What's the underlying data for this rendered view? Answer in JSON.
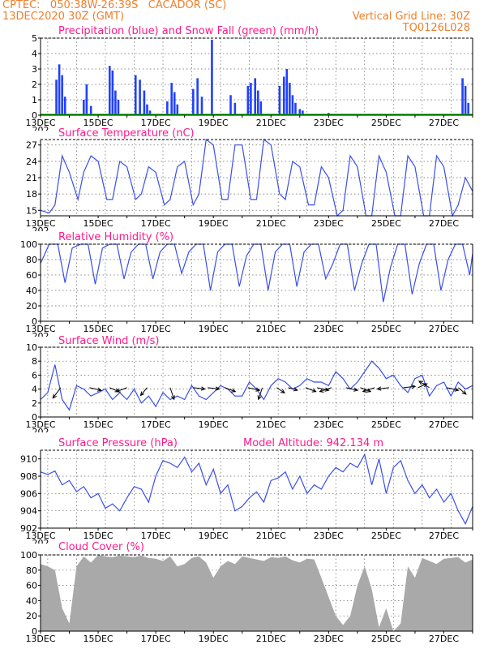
{
  "header": {
    "line1_left": "CPTEC:   050:38W-26:39S   CACADOR (SC)",
    "line2_left": "13DEC2020 30Z (GMT)",
    "line2_right": "Vertical Grid Line: 30Z",
    "line3_right": "TQ0126L028"
  },
  "colors": {
    "header": "#f07f2a",
    "title": "#ff1a8c",
    "precip": "#2040ff",
    "snow": "#00bb00",
    "line": "#3a4fe8",
    "cloud": "#a9a9a9"
  },
  "x_labels": [
    "13DEC",
    "15DEC",
    "17DEC",
    "19DEC",
    "21DEC",
    "23DEC",
    "25DEC",
    "27DEC"
  ],
  "x_cut_label": "202",
  "panels": {
    "precip": {
      "title": "Precipitation (blue) and Snow Fall (green) (mm/h)"
    },
    "temp": {
      "title": "Surface Temperature (nC)"
    },
    "rh": {
      "title": "Relative Humidity (%)"
    },
    "wind": {
      "title": "Surface Wind (m/s)"
    },
    "pressure": {
      "title": "Surface Pressure (hPa)",
      "altitude": "Model Altitude: 942.134 m"
    },
    "cloud": {
      "title": "Cloud Cover (%)"
    }
  },
  "chart_data": [
    {
      "type": "bar",
      "title": "Precipitation (blue) and Snow Fall (green) (mm/h)",
      "x_range_days": [
        13,
        28
      ],
      "ylim": [
        0,
        5
      ],
      "yticks": [
        0,
        1,
        2,
        3,
        4,
        5
      ],
      "series": [
        {
          "name": "blue",
          "x": [
            13.55,
            13.65,
            13.75,
            13.85,
            14.5,
            14.6,
            14.75,
            15.4,
            15.5,
            15.6,
            15.7,
            16.3,
            16.45,
            16.6,
            16.7,
            16.8,
            17.4,
            17.55,
            17.65,
            17.75,
            18.3,
            18.45,
            18.6,
            18.95,
            19.6,
            19.75,
            20.2,
            20.3,
            20.45,
            20.55,
            20.65,
            21.3,
            21.45,
            21.55,
            21.65,
            21.75,
            21.85,
            22.0,
            22.1,
            23.0,
            27.65,
            27.75,
            27.85
          ],
          "values": [
            2.3,
            3.3,
            2.6,
            1.2,
            1.0,
            2.0,
            0.6,
            3.2,
            2.9,
            1.6,
            1.0,
            2.6,
            2.3,
            1.6,
            0.7,
            0.3,
            0.9,
            2.1,
            1.5,
            0.7,
            1.7,
            2.4,
            1.2,
            4.9,
            1.3,
            0.8,
            1.9,
            2.1,
            2.4,
            1.6,
            0.9,
            1.9,
            2.5,
            3.0,
            2.1,
            1.3,
            0.8,
            0.4,
            0.3,
            0.15,
            2.4,
            1.9,
            0.8
          ]
        },
        {
          "name": "green",
          "x": [
            13.0,
            28.0
          ],
          "values": [
            0.05,
            0.05
          ]
        }
      ]
    },
    {
      "type": "line",
      "title": "Surface Temperature (nC)",
      "x_range_days": [
        13,
        28
      ],
      "ylim": [
        14,
        28
      ],
      "yticks": [
        15,
        18,
        21,
        24,
        27
      ],
      "x": [
        13.0,
        13.3,
        13.5,
        13.75,
        14.0,
        14.3,
        14.5,
        14.75,
        15.0,
        15.3,
        15.5,
        15.75,
        16.0,
        16.3,
        16.5,
        16.75,
        17.0,
        17.3,
        17.5,
        17.75,
        18.0,
        18.3,
        18.5,
        18.75,
        19.0,
        19.3,
        19.5,
        19.75,
        20.0,
        20.3,
        20.5,
        20.75,
        21.0,
        21.3,
        21.5,
        21.75,
        22.0,
        22.3,
        22.5,
        22.75,
        23.0,
        23.3,
        23.5,
        23.75,
        24.0,
        24.3,
        24.5,
        24.75,
        25.0,
        25.3,
        25.5,
        25.75,
        26.0,
        26.3,
        26.5,
        26.75,
        27.0,
        27.3,
        27.5,
        27.75,
        28.0
      ],
      "values": [
        15,
        14.5,
        16,
        25,
        22,
        17,
        22,
        25,
        24,
        17,
        17,
        24,
        23,
        17,
        18,
        23,
        22,
        16,
        17,
        23,
        24,
        16,
        18,
        28,
        27,
        17,
        17,
        27,
        27,
        17,
        17,
        28,
        27,
        18,
        17,
        24,
        23,
        16,
        16,
        23,
        21,
        14,
        15,
        25,
        23,
        14,
        14,
        25,
        22,
        14,
        14,
        25,
        23,
        14,
        14,
        25,
        23,
        14,
        16,
        21,
        18.5
      ]
    },
    {
      "type": "line",
      "title": "Relative Humidity (%)",
      "x_range_days": [
        13,
        28
      ],
      "ylim": [
        0,
        100
      ],
      "yticks": [
        0,
        20,
        40,
        60,
        80,
        100
      ],
      "x": [
        13.0,
        13.3,
        13.6,
        13.85,
        14.1,
        14.4,
        14.65,
        14.9,
        15.15,
        15.4,
        15.65,
        15.9,
        16.15,
        16.4,
        16.65,
        16.9,
        17.15,
        17.4,
        17.65,
        17.9,
        18.15,
        18.4,
        18.65,
        18.9,
        19.15,
        19.4,
        19.65,
        19.9,
        20.15,
        20.4,
        20.65,
        20.9,
        21.15,
        21.4,
        21.65,
        21.9,
        22.15,
        22.4,
        22.65,
        22.9,
        23.15,
        23.4,
        23.65,
        23.9,
        24.15,
        24.4,
        24.65,
        24.9,
        25.15,
        25.4,
        25.65,
        25.9,
        26.15,
        26.4,
        26.65,
        26.9,
        27.15,
        27.4,
        27.65,
        27.9,
        28.0
      ],
      "values": [
        75,
        100,
        100,
        50,
        95,
        100,
        100,
        48,
        95,
        100,
        100,
        55,
        90,
        100,
        100,
        55,
        90,
        100,
        100,
        62,
        90,
        100,
        100,
        40,
        90,
        100,
        100,
        45,
        85,
        100,
        100,
        40,
        90,
        100,
        100,
        45,
        90,
        100,
        100,
        55,
        75,
        100,
        100,
        40,
        75,
        100,
        100,
        25,
        70,
        100,
        100,
        35,
        75,
        100,
        100,
        40,
        80,
        100,
        100,
        60,
        88
      ]
    },
    {
      "type": "line",
      "title": "Surface Wind (m/s)",
      "x_range_days": [
        13,
        28
      ],
      "ylim": [
        0,
        10
      ],
      "yticks": [
        0,
        2,
        4,
        6,
        8,
        10
      ],
      "x": [
        13.0,
        13.25,
        13.5,
        13.75,
        14.0,
        14.25,
        14.5,
        14.75,
        15.0,
        15.25,
        15.5,
        15.75,
        16.0,
        16.25,
        16.5,
        16.75,
        17.0,
        17.25,
        17.5,
        17.75,
        18.0,
        18.25,
        18.5,
        18.75,
        19.0,
        19.25,
        19.5,
        19.75,
        20.0,
        20.25,
        20.5,
        20.75,
        21.0,
        21.25,
        21.5,
        21.75,
        22.0,
        22.25,
        22.5,
        22.75,
        23.0,
        23.25,
        23.5,
        23.75,
        24.0,
        24.25,
        24.5,
        24.75,
        25.0,
        25.25,
        25.5,
        25.75,
        26.0,
        26.25,
        26.5,
        26.75,
        27.0,
        27.25,
        27.5,
        27.75,
        28.0
      ],
      "values": [
        2.5,
        3.5,
        7.5,
        2.5,
        1.0,
        4.5,
        4.0,
        3.0,
        3.5,
        4.0,
        2.5,
        3.5,
        2.5,
        4.0,
        2.0,
        3.0,
        1.5,
        3.5,
        2.5,
        3.0,
        2.5,
        4.5,
        3.0,
        2.5,
        3.5,
        4.5,
        4.0,
        3.0,
        3.0,
        5.0,
        4.0,
        2.5,
        4.5,
        5.5,
        5.0,
        4.0,
        4.5,
        5.5,
        5.0,
        5.0,
        4.5,
        6.5,
        5.5,
        4.0,
        5.0,
        6.5,
        8.0,
        7.0,
        5.5,
        6.0,
        4.5,
        3.5,
        5.5,
        6.0,
        3.0,
        4.5,
        5.0,
        3.0,
        5.0,
        4.0,
        4.5
      ],
      "arrows": {
        "x": [
          13.7,
          14.7,
          15.4,
          16.0,
          16.7,
          17.5,
          18.3,
          18.8,
          19.4,
          20.2,
          20.7,
          21.2,
          21.6,
          22.2,
          22.6,
          23.1,
          23.6,
          24.1,
          24.6,
          25.1,
          25.6,
          26.1,
          26.5,
          27.1,
          27.5
        ],
        "u": [
          -0.6,
          0.9,
          0.7,
          -0.8,
          -0.5,
          0.3,
          0.9,
          0.9,
          0.8,
          0.9,
          -0.3,
          0.6,
          0.7,
          0.8,
          0.9,
          -0.9,
          0.9,
          0.8,
          -0.9,
          -0.9,
          0.9,
          0.7,
          -0.8,
          0.9,
          0.6
        ],
        "v": [
          -0.8,
          -0.2,
          -0.3,
          -0.3,
          -0.6,
          -0.9,
          -0.1,
          -0.1,
          -0.3,
          -0.2,
          -0.9,
          -0.4,
          -0.2,
          -0.3,
          -0.2,
          -0.3,
          -0.2,
          -0.3,
          -0.3,
          -0.1,
          0.1,
          0.3,
          0.5,
          -0.2,
          -0.5
        ]
      }
    },
    {
      "type": "line",
      "title": "Surface Pressure (hPa)",
      "x_range_days": [
        13,
        28
      ],
      "ylim": [
        902,
        911
      ],
      "yticks": [
        902,
        904,
        906,
        908,
        910
      ],
      "x": [
        13.0,
        13.25,
        13.5,
        13.75,
        14.0,
        14.25,
        14.5,
        14.75,
        15.0,
        15.25,
        15.5,
        15.75,
        16.0,
        16.25,
        16.5,
        16.75,
        17.0,
        17.25,
        17.5,
        17.75,
        18.0,
        18.25,
        18.5,
        18.75,
        19.0,
        19.25,
        19.5,
        19.75,
        20.0,
        20.25,
        20.5,
        20.75,
        21.0,
        21.25,
        21.5,
        21.75,
        22.0,
        22.25,
        22.5,
        22.75,
        23.0,
        23.25,
        23.5,
        23.75,
        24.0,
        24.25,
        24.5,
        24.75,
        25.0,
        25.25,
        25.5,
        25.75,
        26.0,
        26.25,
        26.5,
        26.75,
        27.0,
        27.25,
        27.5,
        27.75,
        28.0
      ],
      "values": [
        908.5,
        908.2,
        908.6,
        907.0,
        907.5,
        906.2,
        906.8,
        905.5,
        906.0,
        904.3,
        904.8,
        904.0,
        905.5,
        906.8,
        906.5,
        905.0,
        908.0,
        909.8,
        909.5,
        909.0,
        910.2,
        908.5,
        909.5,
        907.0,
        908.8,
        906.0,
        907.0,
        904.0,
        904.5,
        905.5,
        906.2,
        905.0,
        907.5,
        907.8,
        908.5,
        906.5,
        908.0,
        906.0,
        907.0,
        906.5,
        908.0,
        909.0,
        908.5,
        909.5,
        909.0,
        910.5,
        907.0,
        910.0,
        906.0,
        909.0,
        909.8,
        907.5,
        906.0,
        907.0,
        905.5,
        906.5,
        905.0,
        906.0,
        904.0,
        902.5,
        904.5
      ]
    },
    {
      "type": "area",
      "title": "Cloud Cover (%)",
      "x_range_days": [
        13,
        28
      ],
      "ylim": [
        0,
        100
      ],
      "yticks": [
        0,
        20,
        40,
        60,
        80,
        100
      ],
      "x": [
        13.0,
        13.25,
        13.5,
        13.75,
        14.0,
        14.25,
        14.5,
        14.75,
        15.0,
        15.25,
        15.5,
        15.75,
        16.0,
        16.25,
        16.5,
        16.75,
        17.0,
        17.25,
        17.5,
        17.75,
        18.0,
        18.25,
        18.5,
        18.75,
        19.0,
        19.25,
        19.5,
        19.75,
        20.0,
        20.25,
        20.5,
        20.75,
        21.0,
        21.25,
        21.5,
        21.75,
        22.0,
        22.25,
        22.5,
        22.75,
        23.0,
        23.25,
        23.5,
        23.75,
        24.0,
        24.25,
        24.5,
        24.75,
        25.0,
        25.25,
        25.5,
        25.75,
        26.0,
        26.25,
        26.5,
        26.75,
        27.0,
        27.25,
        27.5,
        27.75,
        28.0
      ],
      "values": [
        88,
        85,
        80,
        30,
        10,
        85,
        98,
        90,
        100,
        98,
        97,
        99,
        98,
        97,
        99,
        96,
        95,
        92,
        98,
        85,
        88,
        96,
        98,
        90,
        70,
        85,
        92,
        88,
        98,
        96,
        94,
        92,
        97,
        96,
        98,
        93,
        90,
        95,
        94,
        70,
        45,
        20,
        8,
        20,
        60,
        85,
        55,
        5,
        30,
        0,
        10,
        85,
        70,
        96,
        92,
        88,
        95,
        96,
        97,
        90,
        94
      ]
    }
  ]
}
